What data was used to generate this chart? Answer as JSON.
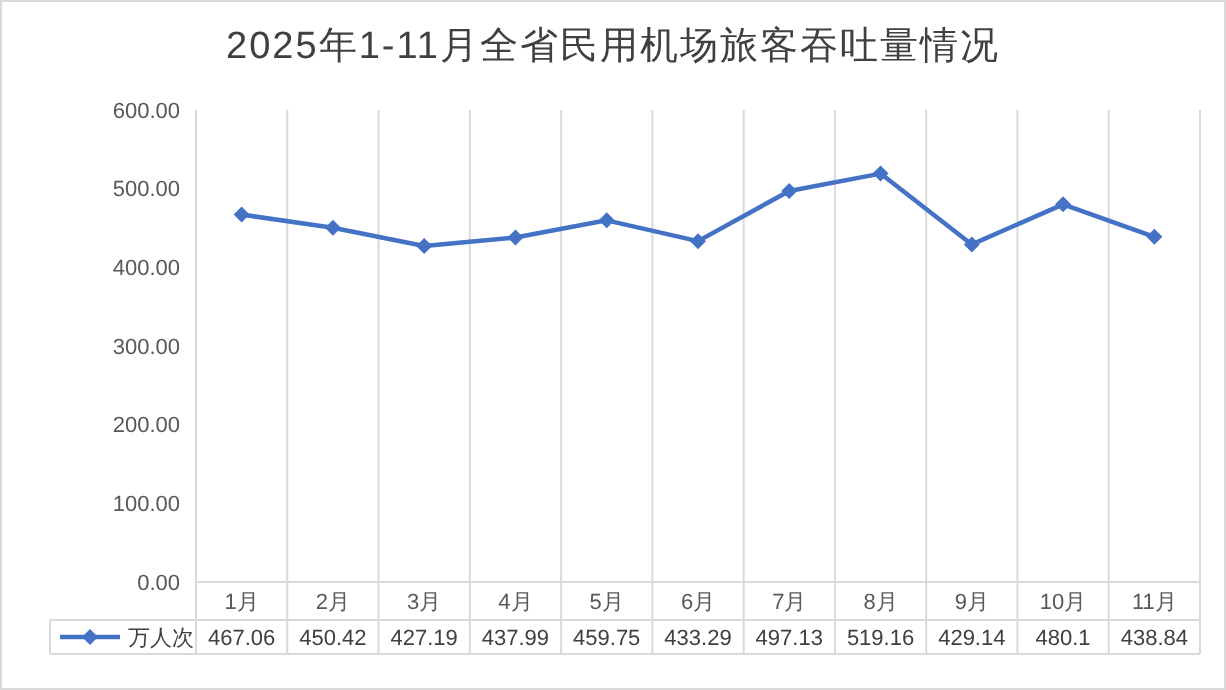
{
  "chart_data": {
    "type": "line",
    "title": "2025年1-11月全省民用机场旅客吞吐量情况",
    "categories": [
      "1月",
      "2月",
      "3月",
      "4月",
      "5月",
      "6月",
      "7月",
      "8月",
      "9月",
      "10月",
      "11月"
    ],
    "series": [
      {
        "name": "万人次",
        "color": "#4472c4",
        "values": [
          467.06,
          450.42,
          427.19,
          437.99,
          459.75,
          433.29,
          497.13,
          519.16,
          429.14,
          480.1,
          438.84
        ]
      }
    ],
    "ylim": [
      0,
      600
    ],
    "yticks": [
      {
        "value": 0,
        "label": "0.00"
      },
      {
        "value": 100,
        "label": "100.00"
      },
      {
        "value": 200,
        "label": "200.00"
      },
      {
        "value": 300,
        "label": "300.00"
      },
      {
        "value": 400,
        "label": "400.00"
      },
      {
        "value": 500,
        "label": "500.00"
      },
      {
        "value": 600,
        "label": "600.00"
      }
    ],
    "grid": "x",
    "legend": "bottom",
    "marker": "diamond",
    "line_style": "solid",
    "data_labels": true
  }
}
